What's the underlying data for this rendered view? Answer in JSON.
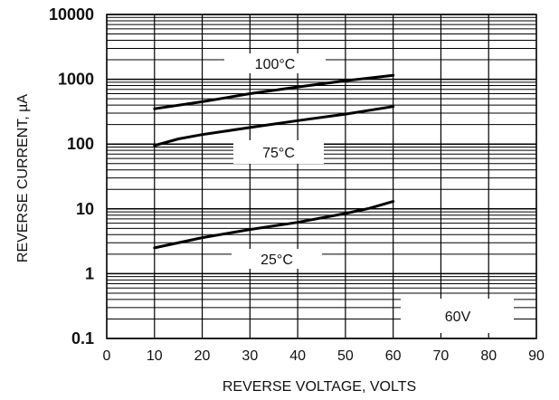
{
  "chart_data": {
    "type": "line",
    "xlabel": "REVERSE VOLTAGE, VOLTS",
    "ylabel": "REVERSE CURRENT, µA",
    "x_ticks": [
      "0",
      "10",
      "20",
      "30",
      "40",
      "50",
      "60",
      "70",
      "80",
      "90"
    ],
    "y_ticks": [
      "0.1",
      "1",
      "10",
      "100",
      "1000",
      "10000"
    ],
    "xlim": [
      0,
      90
    ],
    "ylim": [
      0.1,
      10000
    ],
    "yscale": "log",
    "grid": true,
    "series": [
      {
        "name": "100°C",
        "x": [
          10,
          20,
          30,
          40,
          50,
          60
        ],
        "y": [
          350,
          450,
          600,
          760,
          950,
          1150
        ]
      },
      {
        "name": "75°C",
        "x": [
          10,
          15,
          20,
          30,
          40,
          50,
          60
        ],
        "y": [
          95,
          120,
          140,
          180,
          230,
          290,
          380
        ]
      },
      {
        "name": "25°C",
        "x": [
          10,
          20,
          30,
          40,
          50,
          55,
          60
        ],
        "y": [
          2.5,
          3.6,
          4.8,
          6.2,
          8.5,
          10.2,
          13
        ]
      }
    ],
    "annotations": [
      {
        "text": "60V"
      }
    ]
  }
}
